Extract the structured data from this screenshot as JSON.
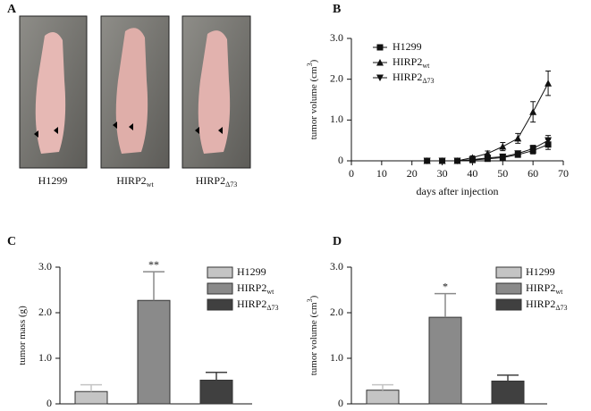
{
  "panel_a": {
    "panel_label": "A",
    "captions": [
      {
        "text": "H1299"
      },
      {
        "text": "HIRP2",
        "sub": "wt"
      },
      {
        "text": "HIRP2",
        "sub": "Δ73"
      }
    ]
  },
  "chart_data": [
    {
      "type": "line",
      "panel_label": "B",
      "ylabel": "tumor volume (cm",
      "ylabel_sup": "3",
      "ylabel_tail": ")",
      "xlabel": "days after injection",
      "x": [
        25,
        30,
        35,
        40,
        45,
        50,
        55,
        60,
        65
      ],
      "series": [
        {
          "name": "H1299",
          "marker": "square",
          "color": "#111111",
          "values": [
            0,
            0,
            0,
            0.02,
            0.05,
            0.08,
            0.15,
            0.25,
            0.4
          ],
          "errors": [
            0,
            0,
            0,
            0.02,
            0.03,
            0.04,
            0.06,
            0.08,
            0.12
          ]
        },
        {
          "name": "HIRP2",
          "subscript": "wt",
          "marker": "triangle-up",
          "color": "#111111",
          "values": [
            0,
            0,
            0,
            0.08,
            0.18,
            0.35,
            0.55,
            1.2,
            1.9
          ],
          "errors": [
            0,
            0,
            0,
            0.04,
            0.06,
            0.1,
            0.12,
            0.25,
            0.3
          ]
        },
        {
          "name": "HIRP2",
          "subscript": "Δ73",
          "marker": "triangle-down",
          "color": "#111111",
          "values": [
            0,
            0,
            0,
            0.03,
            0.07,
            0.1,
            0.18,
            0.3,
            0.5
          ],
          "errors": [
            0,
            0,
            0,
            0.02,
            0.03,
            0.04,
            0.06,
            0.08,
            0.12
          ]
        }
      ],
      "xlim": [
        0,
        70
      ],
      "xticks": [
        0,
        10,
        20,
        30,
        40,
        50,
        60,
        70
      ],
      "ylim": [
        0,
        3
      ],
      "yticks": [
        0,
        {
          "value": 1,
          "label": "1.0"
        },
        {
          "value": 2,
          "label": "2.0"
        },
        {
          "value": 3,
          "label": "3.0"
        }
      ]
    },
    {
      "type": "bar",
      "panel_label": "C",
      "ylabel": "tumor mass (g)",
      "categories": [
        null
      ],
      "series": [
        {
          "name": "H1299",
          "color": "#c4c4c4",
          "values": [
            0.27
          ],
          "errors": [
            0.15
          ]
        },
        {
          "name": "HIRP2",
          "subscript": "wt",
          "color": "#8a8a8a",
          "values": [
            2.27
          ],
          "errors": [
            0.63
          ],
          "annotation": "**"
        },
        {
          "name": "HIRP2",
          "subscript": "Δ73",
          "color": "#404040",
          "values": [
            0.52
          ],
          "errors": [
            0.17
          ]
        }
      ],
      "ylim": [
        0,
        3
      ],
      "yticks": [
        0,
        {
          "value": 1,
          "label": "1.0"
        },
        {
          "value": 2,
          "label": "2.0"
        },
        {
          "value": 3,
          "label": "3.0"
        }
      ]
    },
    {
      "type": "bar",
      "panel_label": "D",
      "ylabel": "tumor volume (cm",
      "ylabel_sup": "3",
      "ylabel_tail": ")",
      "categories": [
        null
      ],
      "series": [
        {
          "name": "H1299",
          "color": "#c4c4c4",
          "values": [
            0.3
          ],
          "errors": [
            0.12
          ]
        },
        {
          "name": "HIRP2",
          "subscript": "wt",
          "color": "#8a8a8a",
          "values": [
            1.9
          ],
          "errors": [
            0.52
          ],
          "annotation": "*"
        },
        {
          "name": "HIRP2",
          "subscript": "Δ73",
          "color": "#404040",
          "values": [
            0.5
          ],
          "errors": [
            0.13
          ]
        }
      ],
      "ylim": [
        0,
        3
      ],
      "yticks": [
        0,
        {
          "value": 1,
          "label": "1.0"
        },
        {
          "value": 2,
          "label": "2.0"
        },
        {
          "value": 3,
          "label": "3.0"
        }
      ]
    }
  ]
}
